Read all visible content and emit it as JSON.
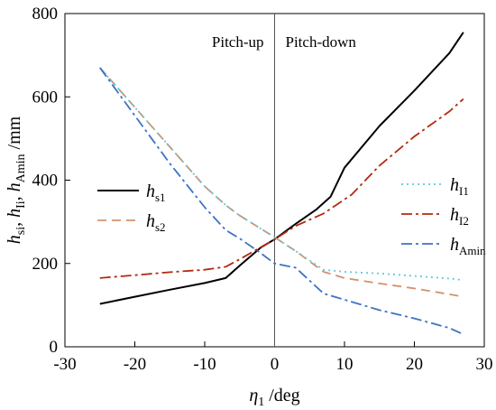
{
  "chart_data": {
    "type": "line",
    "xlabel_base": "η",
    "xlabel_sub": "1",
    "xlabel_unit": " /deg",
    "ylabel_parts": [
      {
        "t": "h",
        "italic": true
      },
      {
        "t": "si",
        "sub": true
      },
      {
        "t": ", ",
        "italic": false
      },
      {
        "t": "h",
        "italic": true
      },
      {
        "t": "Ii",
        "sub": true
      },
      {
        "t": ", ",
        "italic": false
      },
      {
        "t": "h",
        "italic": true
      },
      {
        "t": "Amin",
        "sub": true
      },
      {
        "t": " /mm",
        "italic": false
      }
    ],
    "xlim": [
      -30,
      30
    ],
    "ylim": [
      0,
      800
    ],
    "xticks": [
      -30,
      -20,
      -10,
      0,
      10,
      20,
      30
    ],
    "yticks": [
      0,
      200,
      400,
      600,
      800
    ],
    "annotations": [
      "Pitch-up",
      "Pitch-down"
    ],
    "grid": false,
    "vline_x": 0,
    "series": [
      {
        "name": "h",
        "sub": "s1",
        "color": "#000000",
        "dash": "",
        "legend_group": "left",
        "x": [
          -25,
          -20,
          -15,
          -10,
          -7,
          -5,
          -2,
          0,
          3,
          6,
          8,
          10,
          15,
          20,
          25,
          27
        ],
        "y": [
          103,
          120,
          137,
          153,
          165,
          195,
          238,
          258,
          295,
          330,
          360,
          430,
          530,
          615,
          705,
          755
        ]
      },
      {
        "name": "h",
        "sub": "s2",
        "color": "#d2926c",
        "dash": "10,6",
        "legend_group": "left",
        "x": [
          -25,
          -20,
          -15,
          -10,
          -7,
          -5,
          0,
          3,
          7,
          10,
          15,
          20,
          25,
          27
        ],
        "y": [
          670,
          575,
          480,
          385,
          340,
          315,
          263,
          230,
          180,
          165,
          152,
          140,
          126,
          120
        ]
      },
      {
        "name": "h",
        "sub": "I1",
        "color": "#62c7d9",
        "dash": "2,4",
        "legend_group": "right",
        "x": [
          -25,
          -20,
          -15,
          -10,
          -7,
          -5,
          0,
          3,
          7,
          10,
          15,
          20,
          25,
          27
        ],
        "y": [
          670,
          575,
          480,
          385,
          340,
          315,
          263,
          230,
          185,
          180,
          176,
          170,
          164,
          160
        ]
      },
      {
        "name": "h",
        "sub": "I2",
        "color": "#b22a10",
        "dash": "12,4,3,4",
        "legend_group": "right",
        "x": [
          -25,
          -20,
          -15,
          -10,
          -7,
          -5,
          0,
          3,
          7,
          11,
          15,
          20,
          25,
          27
        ],
        "y": [
          165,
          172,
          179,
          185,
          192,
          210,
          258,
          290,
          320,
          365,
          435,
          505,
          565,
          595
        ]
      },
      {
        "name": "h",
        "sub": "Amin",
        "color": "#3d73c4",
        "dash": "12,4,3,4",
        "legend_group": "right",
        "x": [
          -25,
          -20,
          -15,
          -10,
          -7,
          -5,
          -2,
          0,
          3,
          7,
          10,
          15,
          20,
          25,
          27
        ],
        "y": [
          670,
          555,
          440,
          335,
          280,
          260,
          225,
          200,
          190,
          128,
          113,
          88,
          68,
          45,
          30
        ]
      }
    ]
  }
}
